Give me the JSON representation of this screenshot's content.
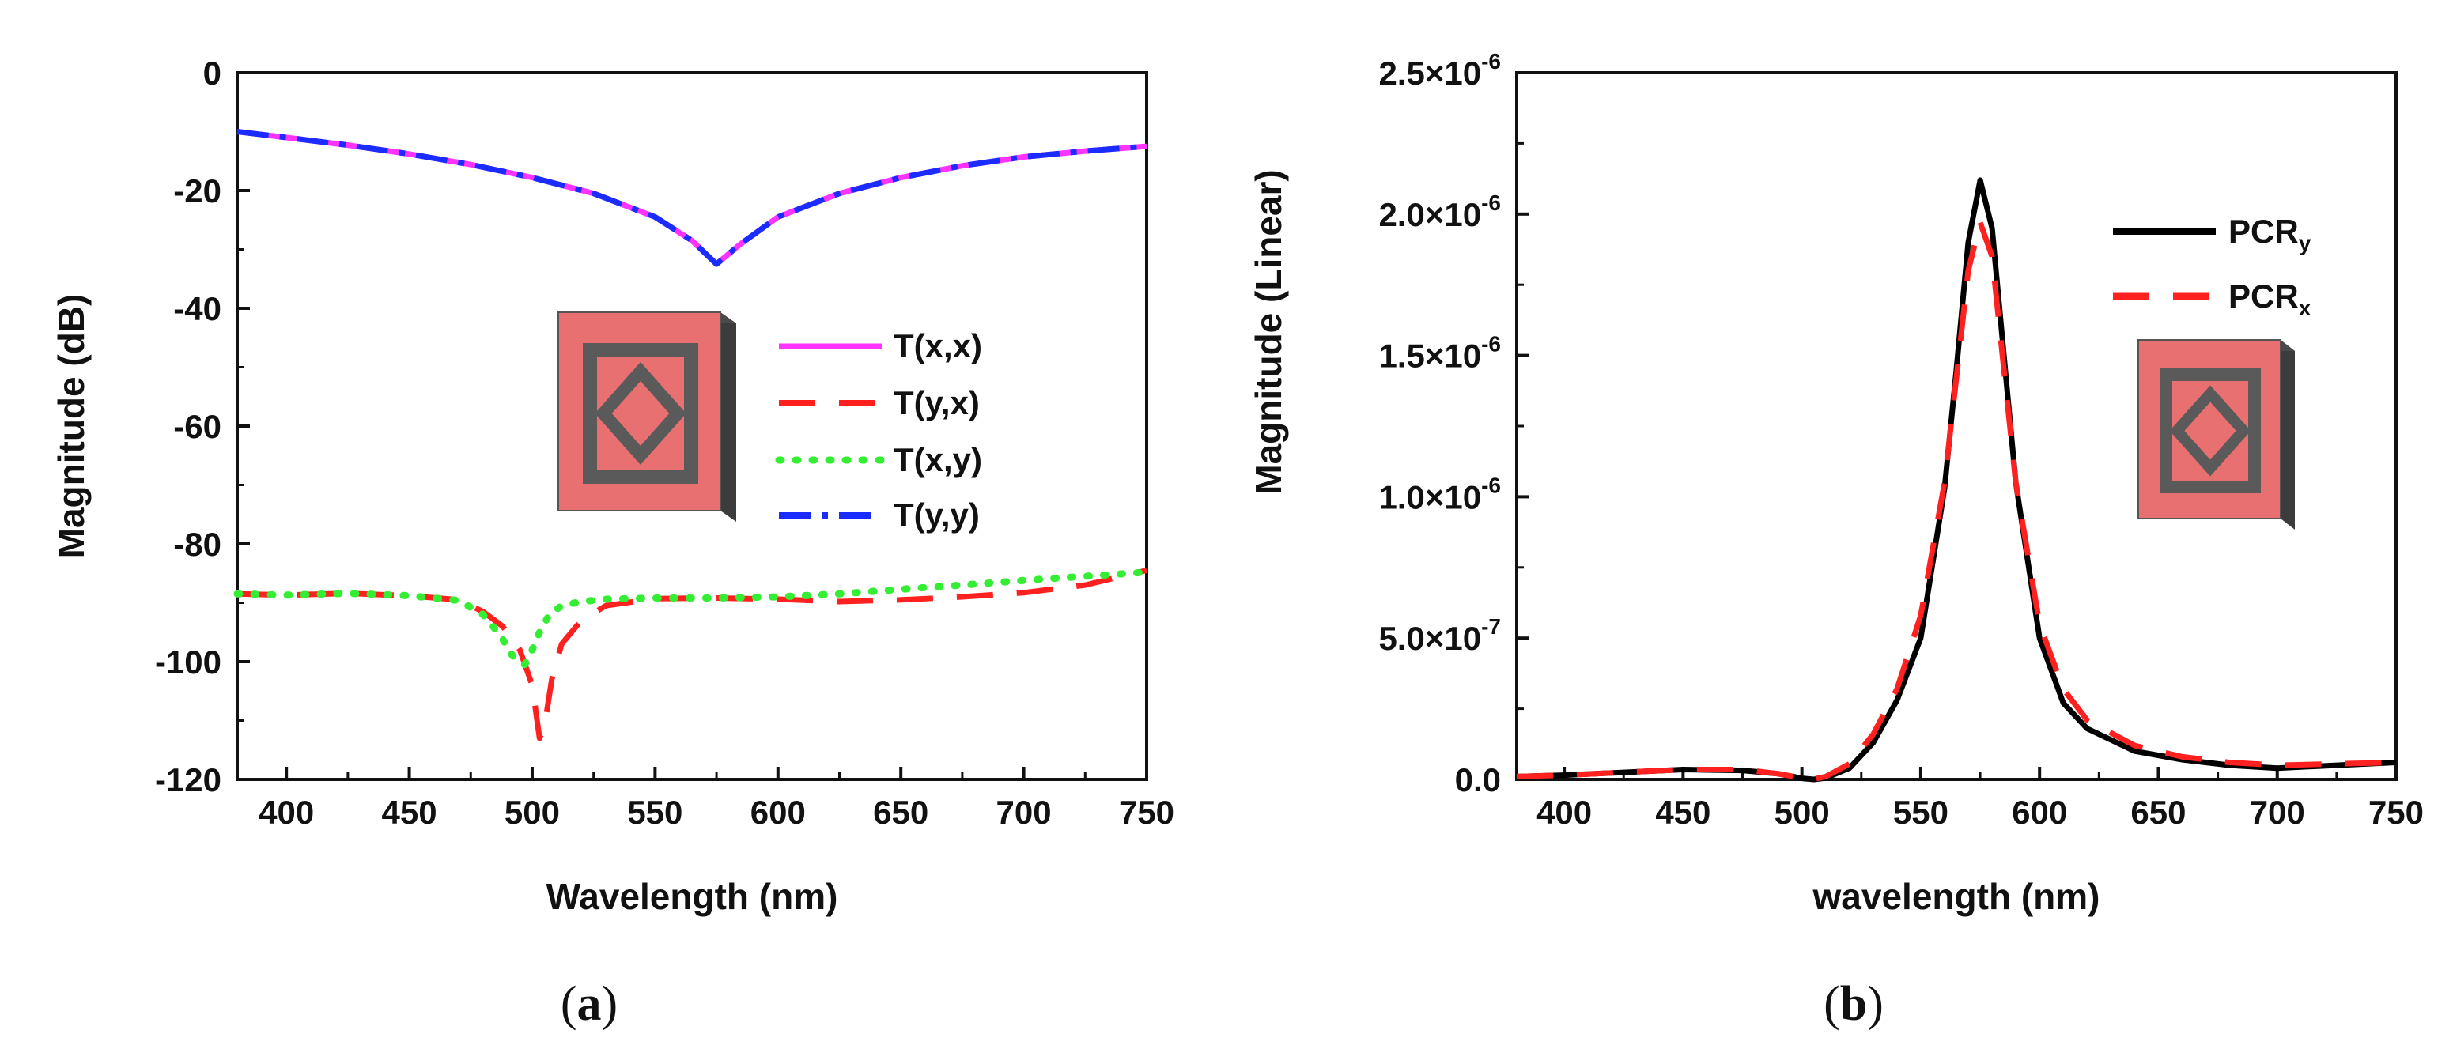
{
  "chart_data": [
    {
      "type": "line",
      "panel": "a",
      "caption": {
        "open": "(",
        "letter": "a",
        "close": ")"
      },
      "title": "",
      "xlabel": "Wavelength (nm)",
      "ylabel": "Magnitude (dB)",
      "xlim": [
        380,
        750
      ],
      "ylim": [
        -120,
        0
      ],
      "xticks": [
        400,
        450,
        500,
        550,
        600,
        650,
        700,
        750
      ],
      "yticks": [
        0,
        -20,
        -40,
        -60,
        -80,
        -100,
        -120
      ],
      "xtick_labels": [
        "400",
        "450",
        "500",
        "550",
        "600",
        "650",
        "700",
        "750"
      ],
      "ytick_labels": [
        "0",
        "-20",
        "-40",
        "-60",
        "-80",
        "-100",
        "-120"
      ],
      "legend_position": "center-right",
      "series": [
        {
          "name": "T(x,x)",
          "color": "#ff33ff",
          "dash": "solid",
          "x": [
            380,
            400,
            425,
            450,
            475,
            500,
            525,
            550,
            565,
            575,
            585,
            600,
            625,
            650,
            675,
            700,
            725,
            750
          ],
          "y": [
            -10,
            -11,
            -12.3,
            -13.8,
            -15.6,
            -17.8,
            -20.5,
            -24.5,
            -28.5,
            -32.5,
            -29,
            -24.5,
            -20.5,
            -17.8,
            -15.8,
            -14.3,
            -13.3,
            -12.5
          ]
        },
        {
          "name": "T(y,x)",
          "color": "#ff2020",
          "dash": "long-dash",
          "x": [
            380,
            400,
            425,
            450,
            470,
            480,
            488,
            495,
            500,
            503,
            505,
            508,
            512,
            520,
            530,
            550,
            575,
            600,
            625,
            650,
            675,
            700,
            725,
            750
          ],
          "y": [
            -88.5,
            -88.7,
            -88.4,
            -88.8,
            -89.5,
            -91.5,
            -94,
            -98,
            -104,
            -113,
            -111,
            -103,
            -97,
            -93,
            -90.5,
            -89.3,
            -89.2,
            -89.4,
            -89.8,
            -89.5,
            -89,
            -88.3,
            -87,
            -84.5
          ]
        },
        {
          "name": "T(x,y)",
          "color": "#33ee33",
          "dash": "dot",
          "x": [
            380,
            400,
            425,
            450,
            470,
            480,
            487,
            492,
            497,
            500,
            503,
            507,
            512,
            520,
            530,
            550,
            575,
            600,
            625,
            650,
            675,
            700,
            725,
            750
          ],
          "y": [
            -88.5,
            -88.7,
            -88.4,
            -88.8,
            -89.6,
            -92,
            -95.5,
            -99,
            -100.5,
            -98,
            -95,
            -92,
            -90.5,
            -89.8,
            -89.4,
            -89.2,
            -89.2,
            -89,
            -88.5,
            -87.7,
            -87,
            -86.2,
            -85.5,
            -84.8
          ]
        },
        {
          "name": "T(y,y)",
          "color": "#1a2cff",
          "dash": "dash-dot",
          "x": [
            380,
            400,
            425,
            450,
            475,
            500,
            525,
            550,
            565,
            575,
            585,
            600,
            625,
            650,
            675,
            700,
            725,
            750
          ],
          "y": [
            -10,
            -11,
            -12.3,
            -13.8,
            -15.6,
            -17.8,
            -20.5,
            -24.5,
            -28.5,
            -32.5,
            -29,
            -24.5,
            -20.5,
            -17.8,
            -15.8,
            -14.3,
            -13.3,
            -12.5
          ]
        }
      ],
      "inset": {
        "name": "metasurface unit cell diagram",
        "colors": {
          "face": "#e87070",
          "ring": "#5a5a5a",
          "side": "#3c3c3c"
        }
      }
    },
    {
      "type": "line",
      "panel": "b",
      "caption": {
        "open": "(",
        "letter": "b",
        "close": ")"
      },
      "title": "",
      "xlabel": "wavelength (nm)",
      "ylabel": "Magnitude (Linear)",
      "xlim": [
        380,
        750
      ],
      "ylim": [
        0,
        2.5e-06
      ],
      "xticks": [
        400,
        450,
        500,
        550,
        600,
        650,
        700,
        750
      ],
      "yticks": [
        0,
        5e-07,
        1e-06,
        1.5e-06,
        2e-06,
        2.5e-06
      ],
      "xtick_labels": [
        "400",
        "450",
        "500",
        "550",
        "600",
        "650",
        "700",
        "750"
      ],
      "ytick_labels": [
        "0.0",
        "5.0×10",
        "1.0×10",
        "1.5×10",
        "2.0×10",
        "2.5×10"
      ],
      "ytick_exponents": [
        "",
        "-7",
        "-6",
        "-6",
        "-6",
        "-6"
      ],
      "legend_position": "top-right",
      "series": [
        {
          "name": "PCR",
          "subscript": "y",
          "color": "#000000",
          "dash": "solid",
          "x": [
            380,
            400,
            425,
            450,
            475,
            490,
            500,
            505,
            510,
            520,
            530,
            540,
            550,
            560,
            565,
            570,
            575,
            580,
            585,
            590,
            600,
            610,
            620,
            640,
            660,
            680,
            700,
            725,
            750
          ],
          "y": [
            1e-08,
            1.5e-08,
            2.5e-08,
            3.5e-08,
            3.2e-08,
            2e-08,
            4e-09,
            0,
            5e-09,
            4e-08,
            1.3e-07,
            2.8e-07,
            5e-07,
            1.03e-06,
            1.45e-06,
            1.9e-06,
            2.12e-06,
            1.95e-06,
            1.5e-06,
            1.05e-06,
            5e-07,
            2.7e-07,
            1.8e-07,
            1e-07,
            7e-08,
            5e-08,
            4e-08,
            5e-08,
            6e-08
          ]
        },
        {
          "name": "PCR",
          "subscript": "x",
          "color": "#ff2020",
          "dash": "long-dash",
          "x": [
            380,
            400,
            425,
            450,
            475,
            490,
            500,
            505,
            510,
            520,
            530,
            540,
            550,
            560,
            565,
            570,
            575,
            580,
            585,
            590,
            600,
            610,
            620,
            640,
            660,
            680,
            700,
            725,
            750
          ],
          "y": [
            1e-08,
            1.5e-08,
            2.5e-08,
            3.5e-08,
            3.5e-08,
            2e-08,
            5e-09,
            1e-09,
            1e-08,
            5.5e-08,
            1.6e-07,
            3.2e-07,
            5.8e-07,
            1.05e-06,
            1.42e-06,
            1.8e-06,
            1.97e-06,
            1.85e-06,
            1.45e-06,
            1.05e-06,
            5.5e-07,
            3.2e-07,
            2.1e-07,
            1.2e-07,
            8e-08,
            6e-08,
            5e-08,
            5.5e-08,
            6e-08
          ]
        }
      ],
      "inset": {
        "name": "metasurface unit cell diagram",
        "colors": {
          "face": "#e87070",
          "ring": "#5a5a5a",
          "side": "#3c3c3c"
        }
      }
    }
  ]
}
